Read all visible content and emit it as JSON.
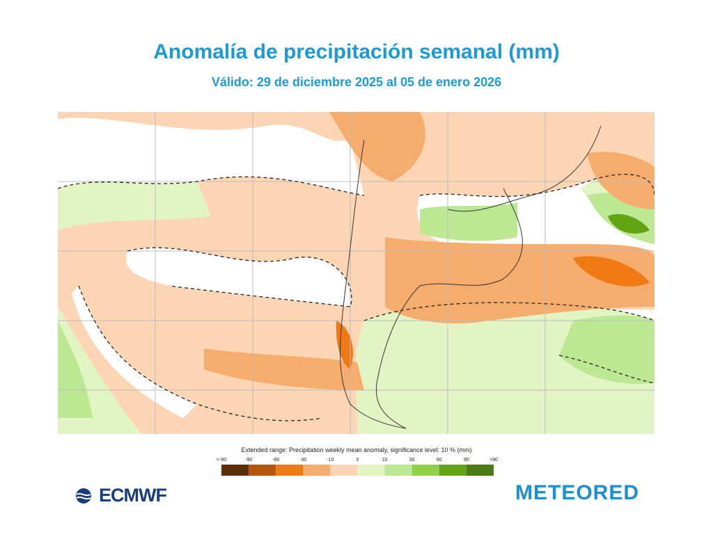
{
  "header": {
    "title": "Anomalía de precipitación semanal (mm)",
    "subtitle": "Válido: 29 de diciembre 2025 al 05 de enero 2026"
  },
  "legend": {
    "caption": "Extended range: Precipitation weekly mean anomaly, significance level: 10 % (mm)",
    "labels": [
      "<-90",
      "-90",
      "-60",
      "-30",
      "-10",
      "0",
      "10",
      "30",
      "60",
      "90",
      ">90"
    ],
    "colors": [
      "#5c2e0a",
      "#b4560e",
      "#ef7a14",
      "#f6ac6c",
      "#fcd6b4",
      "#e2f4c4",
      "#bce894",
      "#90d04a",
      "#62a414",
      "#4c7a12"
    ]
  },
  "logos": {
    "left": "ECMWF",
    "right": "METEORED"
  }
}
